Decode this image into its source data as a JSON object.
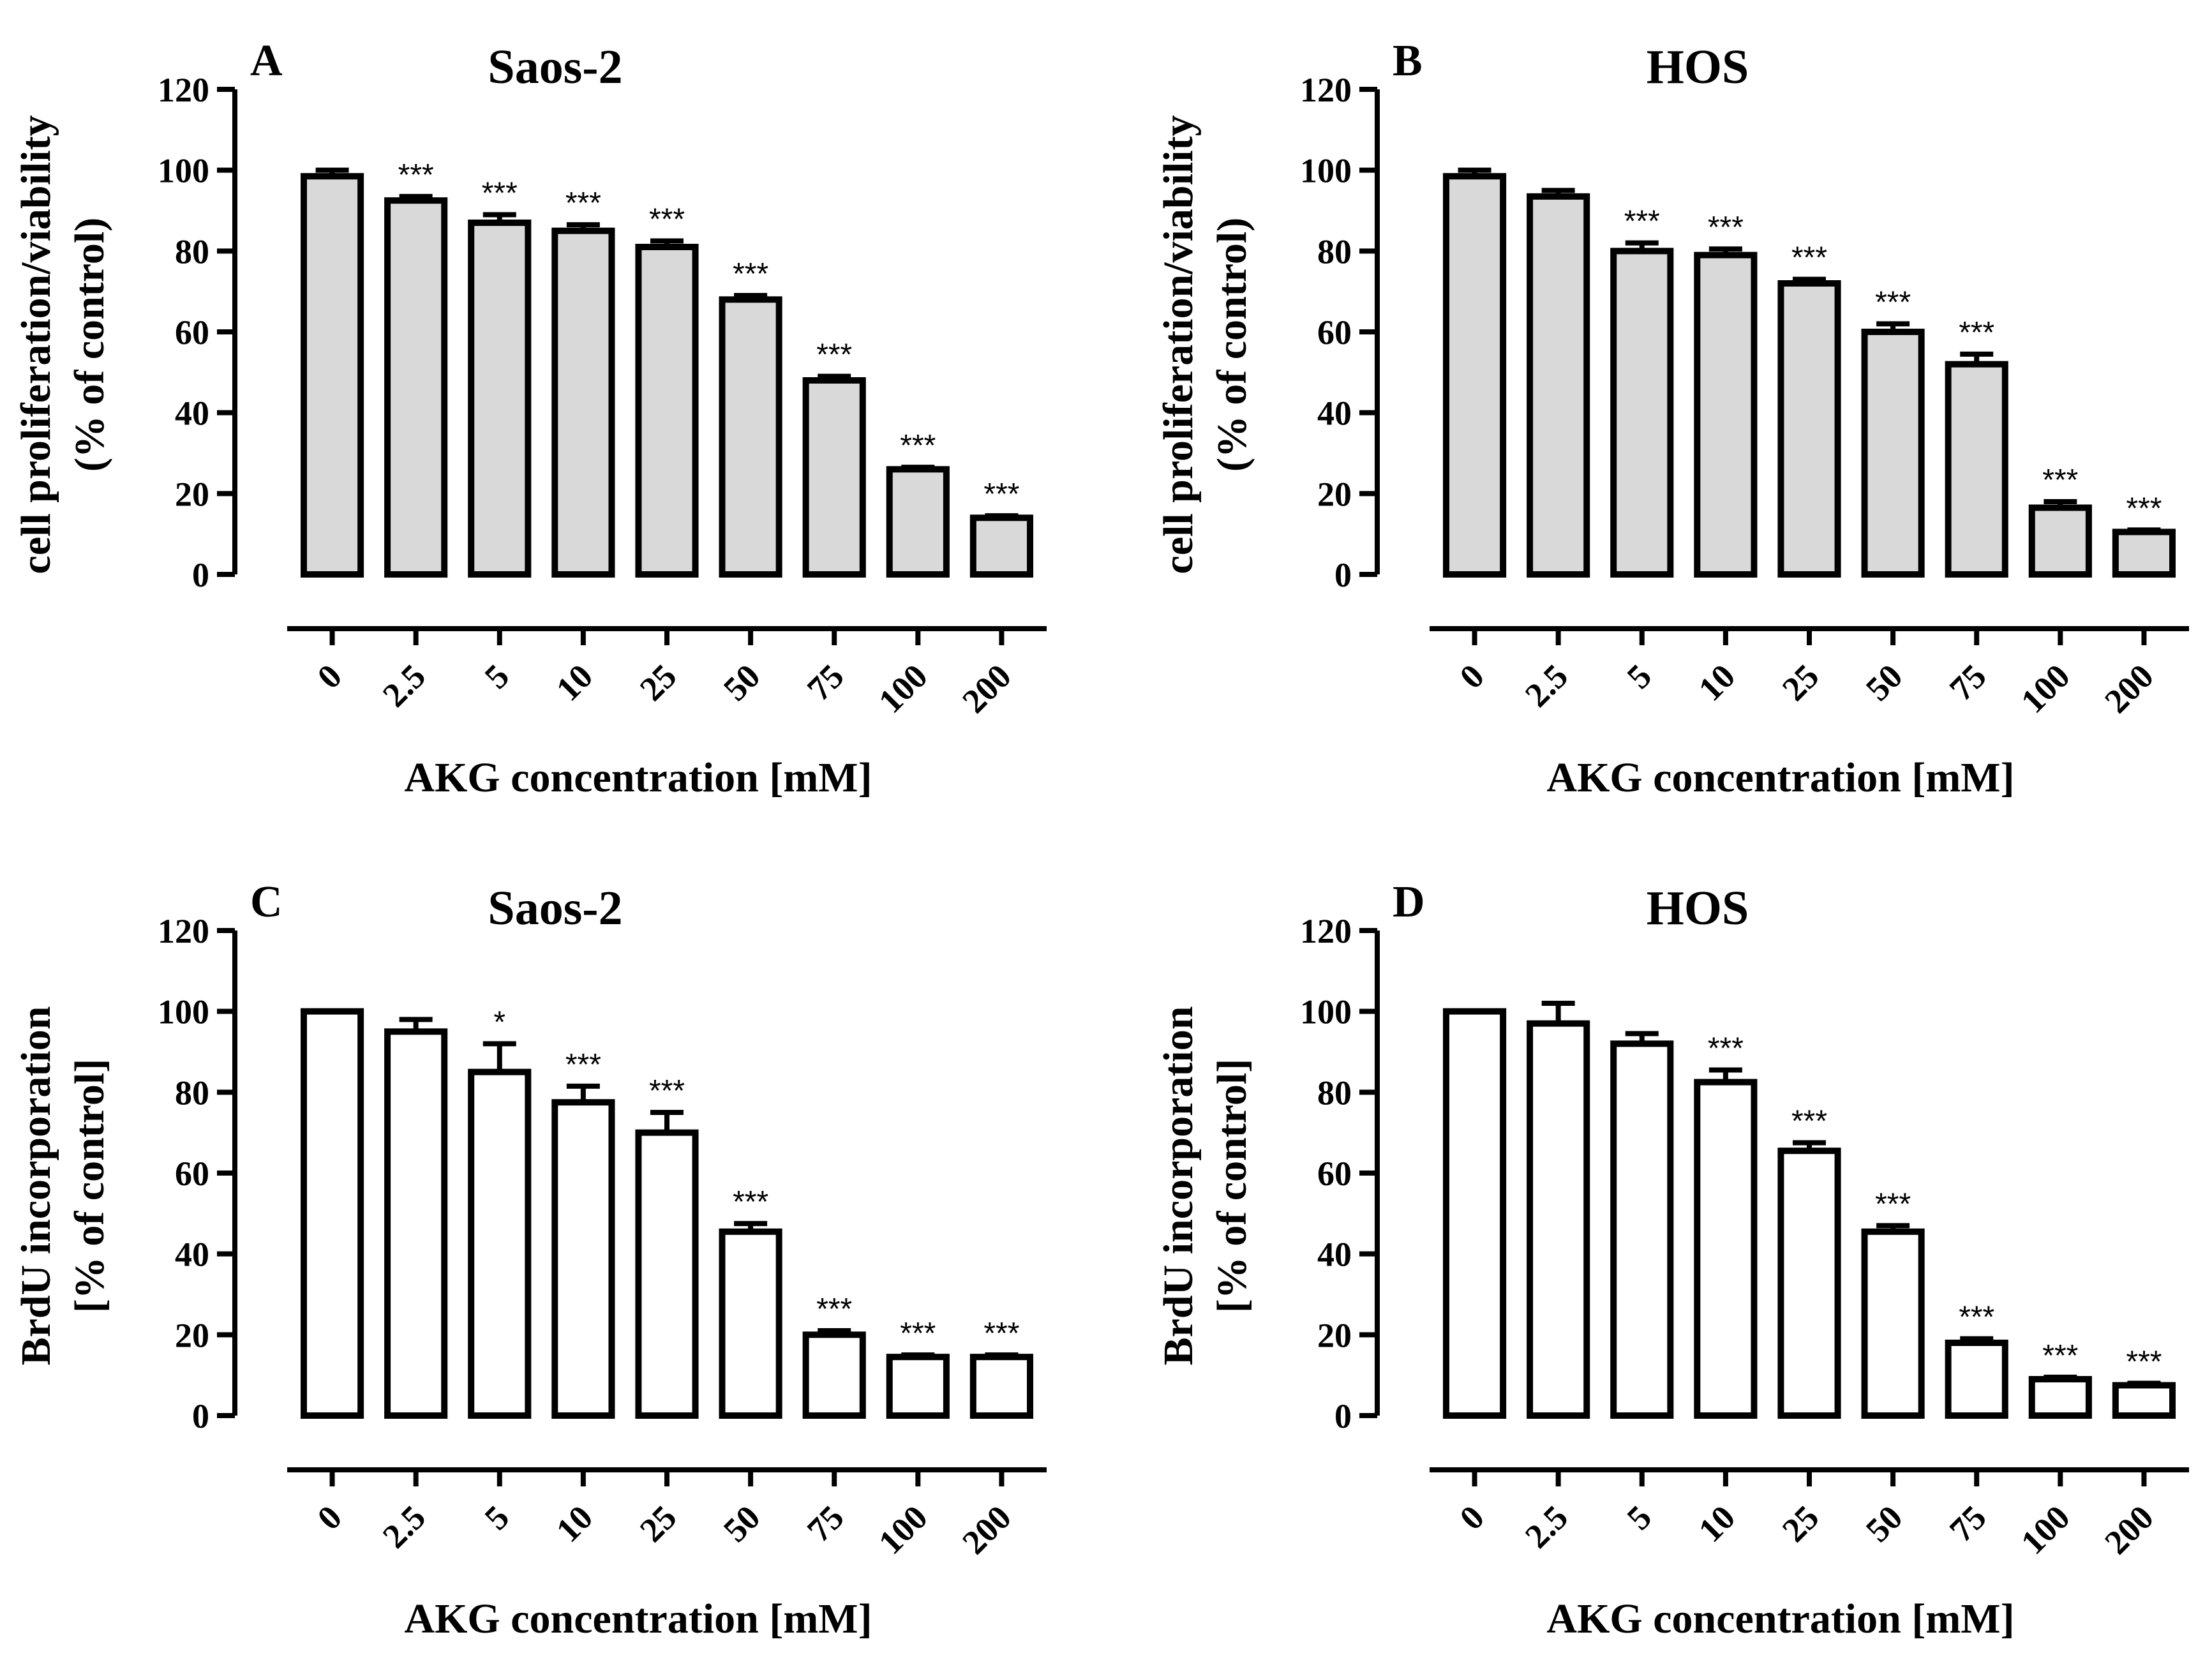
{
  "chart_data": [
    {
      "type": "bar",
      "panel": "A",
      "title": "Saos-2",
      "xlabel": "AKG concentration [mM]",
      "ylabel_lines": [
        "cell proliferation/viability",
        "(% of control)"
      ],
      "ylim": [
        0,
        120
      ],
      "yticks": [
        "0",
        "20",
        "40",
        "60",
        "80",
        "100",
        "120"
      ],
      "categories": [
        "0",
        "2.5",
        "5",
        "10",
        "25",
        "50",
        "75",
        "100",
        "200"
      ],
      "values": [
        98.5,
        92.5,
        87,
        85,
        81,
        68,
        48,
        26,
        14
      ],
      "errors": [
        1.5,
        1.0,
        2.0,
        1.5,
        1.5,
        1.0,
        1.0,
        0.5,
        0.5
      ],
      "significance": [
        "",
        "***",
        "***",
        "***",
        "***",
        "***",
        "***",
        "***",
        "***"
      ],
      "fill": "#d9d9d9"
    },
    {
      "type": "bar",
      "panel": "B",
      "title": "HOS",
      "xlabel": "AKG concentration [mM]",
      "ylabel_lines": [
        "cell proliferation/viability",
        "(% of control)"
      ],
      "ylim": [
        0,
        120
      ],
      "yticks": [
        "0",
        "20",
        "40",
        "60",
        "80",
        "100",
        "120"
      ],
      "categories": [
        "0",
        "2.5",
        "5",
        "10",
        "25",
        "50",
        "75",
        "100",
        "200"
      ],
      "values": [
        98.5,
        93.5,
        80,
        79,
        72,
        60,
        52,
        16.5,
        10.5
      ],
      "errors": [
        1.5,
        1.5,
        2.0,
        1.5,
        1.0,
        2.0,
        2.5,
        1.5,
        0.5
      ],
      "significance": [
        "",
        "",
        "***",
        "***",
        "***",
        "***",
        "***",
        "***",
        "***"
      ],
      "fill": "#d9d9d9"
    },
    {
      "type": "bar",
      "panel": "C",
      "title": "Saos-2",
      "xlabel": "AKG concentration [mM]",
      "ylabel_lines": [
        "BrdU incorporation",
        "[% of control]"
      ],
      "ylim": [
        0,
        120
      ],
      "yticks": [
        "0",
        "20",
        "40",
        "60",
        "80",
        "100",
        "120"
      ],
      "categories": [
        "0",
        "2.5",
        "5",
        "10",
        "25",
        "50",
        "75",
        "100",
        "200"
      ],
      "values": [
        100,
        95,
        85,
        77.5,
        70,
        45.5,
        20,
        14.5,
        14.5
      ],
      "errors": [
        0,
        3,
        7,
        4,
        5,
        2,
        1,
        0.5,
        0.5
      ],
      "significance": [
        "",
        "",
        "*",
        "***",
        "***",
        "***",
        "***",
        "***",
        "***"
      ],
      "fill": "#ffffff"
    },
    {
      "type": "bar",
      "panel": "D",
      "title": "HOS",
      "xlabel": "AKG concentration [mM]",
      "ylabel_lines": [
        "BrdU incorporation",
        "[% of control]"
      ],
      "ylim": [
        0,
        120
      ],
      "yticks": [
        "0",
        "20",
        "40",
        "60",
        "80",
        "100",
        "120"
      ],
      "categories": [
        "0",
        "2.5",
        "5",
        "10",
        "25",
        "50",
        "75",
        "100",
        "200"
      ],
      "values": [
        100,
        97,
        92,
        82.5,
        65.5,
        45.5,
        18,
        9,
        7.5
      ],
      "errors": [
        0,
        5,
        2.5,
        3,
        2,
        1.5,
        1,
        0.5,
        0.5
      ],
      "significance": [
        "",
        "",
        "",
        "***",
        "***",
        "***",
        "***",
        "***",
        "***"
      ],
      "fill": "#ffffff"
    }
  ]
}
